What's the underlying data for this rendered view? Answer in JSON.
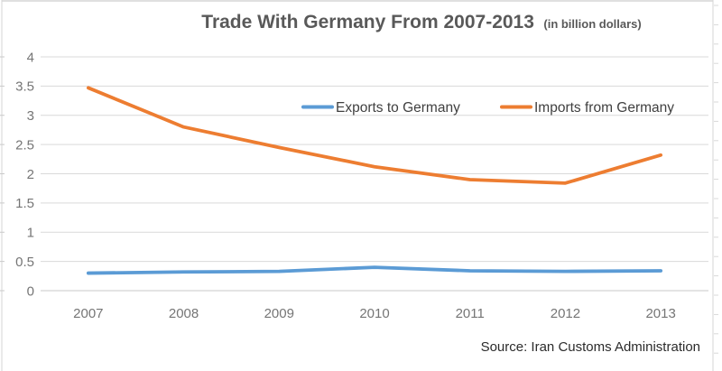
{
  "title": {
    "main": "Trade With Germany From 2007-2013",
    "suffix": "(in billion dollars)"
  },
  "source": "Source: Iran Customs Administration",
  "colors": {
    "title_text": "#595959",
    "axis_text": "#757575",
    "legend_text": "#404040",
    "source_text": "#2b2b2b",
    "gridline": "#d9d9d9",
    "axis_line": "#c9c9c9",
    "frame_border": "#d6d6d6",
    "exports_series": "#5B9BD5",
    "imports_series": "#ED7D31"
  },
  "chart_data": {
    "type": "line",
    "categories": [
      "2007",
      "2008",
      "2009",
      "2010",
      "2011",
      "2012",
      "2013"
    ],
    "series": [
      {
        "name": "Exports to Germany",
        "color": "#5B9BD5",
        "values": [
          0.3,
          0.32,
          0.33,
          0.4,
          0.34,
          0.33,
          0.34
        ]
      },
      {
        "name": "Imports from Germany",
        "color": "#ED7D31",
        "values": [
          3.47,
          2.8,
          2.45,
          2.12,
          1.9,
          1.84,
          2.32
        ]
      }
    ],
    "title": "Trade With Germany From 2007-2013 (in billion dollars)",
    "xlabel": "",
    "ylabel": "",
    "ylim": [
      0,
      4
    ],
    "ytick_step": 0.5,
    "yticks": [
      "0",
      "0.5",
      "1",
      "1.5",
      "2",
      "2.5",
      "3",
      "3.5",
      "4"
    ],
    "grid": true,
    "legend_position": "inside-top-right",
    "source_note": "Source: Iran Customs Administration"
  }
}
